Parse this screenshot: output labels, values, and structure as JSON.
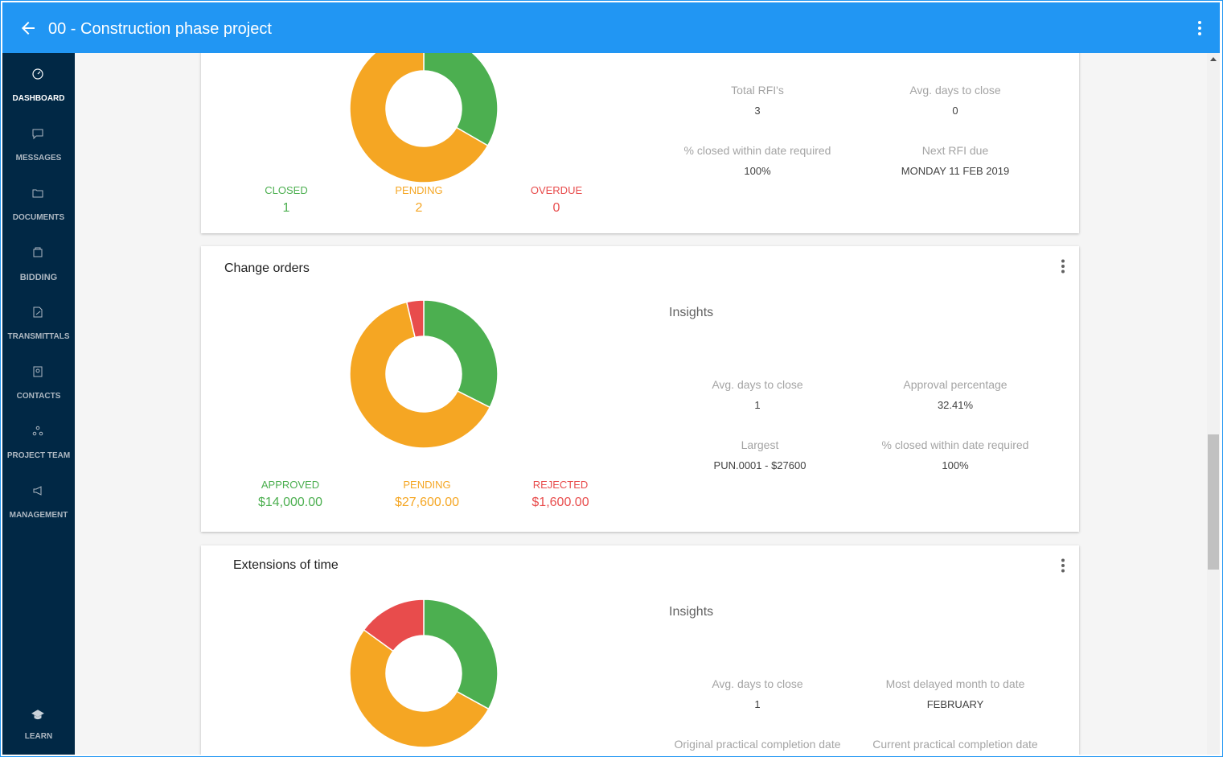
{
  "header": {
    "title": "00 - Construction phase project"
  },
  "sidebar": {
    "items": [
      {
        "label": "DASHBOARD",
        "icon": "dashboard-icon"
      },
      {
        "label": "MESSAGES",
        "icon": "message-icon"
      },
      {
        "label": "DOCUMENTS",
        "icon": "folder-icon"
      },
      {
        "label": "BIDDING",
        "icon": "bidding-icon"
      },
      {
        "label": "TRANSMITTALS",
        "icon": "transmittal-icon"
      },
      {
        "label": "CONTACTS",
        "icon": "contacts-icon"
      },
      {
        "label": "PROJECT TEAM",
        "icon": "team-icon"
      },
      {
        "label": "MANAGEMENT",
        "icon": "megaphone-icon"
      }
    ],
    "learn": {
      "label": "LEARN",
      "icon": "graduation-cap-icon"
    }
  },
  "rfi": {
    "stats": [
      {
        "label": "CLOSED",
        "value": "1"
      },
      {
        "label": "PENDING",
        "value": "2"
      },
      {
        "label": "OVERDUE",
        "value": "0"
      }
    ],
    "insights": [
      {
        "label": "Total RFI's",
        "value": "3"
      },
      {
        "label": "Avg. days to close",
        "value": "0"
      },
      {
        "label": "% closed within date required",
        "value": "100%"
      },
      {
        "label": "Next RFI due",
        "value": "MONDAY 11 FEB 2019"
      }
    ],
    "chart_data": {
      "type": "pie",
      "categories": [
        "CLOSED",
        "PENDING",
        "OVERDUE"
      ],
      "values": [
        1,
        2,
        0
      ],
      "colors": [
        "#4caf50",
        "#f5a623",
        "#e84c4c"
      ]
    }
  },
  "change_orders": {
    "title": "Change orders",
    "insights_heading": "Insights",
    "stats": [
      {
        "label": "APPROVED",
        "value": "$14,000.00"
      },
      {
        "label": "PENDING",
        "value": "$27,600.00"
      },
      {
        "label": "REJECTED",
        "value": "$1,600.00"
      }
    ],
    "insights": [
      {
        "label": "Avg. days to close",
        "value": "1"
      },
      {
        "label": "Approval percentage",
        "value": "32.41%"
      },
      {
        "label": "Largest",
        "value": "PUN.0001 - $27600"
      },
      {
        "label": "% closed within date required",
        "value": "100%"
      }
    ],
    "chart_data": {
      "type": "pie",
      "categories": [
        "APPROVED",
        "PENDING",
        "REJECTED"
      ],
      "values": [
        14000,
        27600,
        1600
      ],
      "colors": [
        "#4caf50",
        "#f5a623",
        "#e84c4c"
      ]
    }
  },
  "eot": {
    "title": "Extensions of time",
    "insights_heading": "Insights",
    "insights": [
      {
        "label": "Avg. days to close",
        "value": "1"
      },
      {
        "label": "Most delayed month to date",
        "value": "FEBRUARY"
      },
      {
        "label": "Original practical completion date",
        "value": ""
      },
      {
        "label": "Current practical completion date",
        "value": ""
      }
    ],
    "chart_data": {
      "type": "pie",
      "categories": [
        "green",
        "orange",
        "red"
      ],
      "values": [
        33,
        52,
        15
      ],
      "colors": [
        "#4caf50",
        "#f5a623",
        "#e84c4c"
      ]
    }
  }
}
